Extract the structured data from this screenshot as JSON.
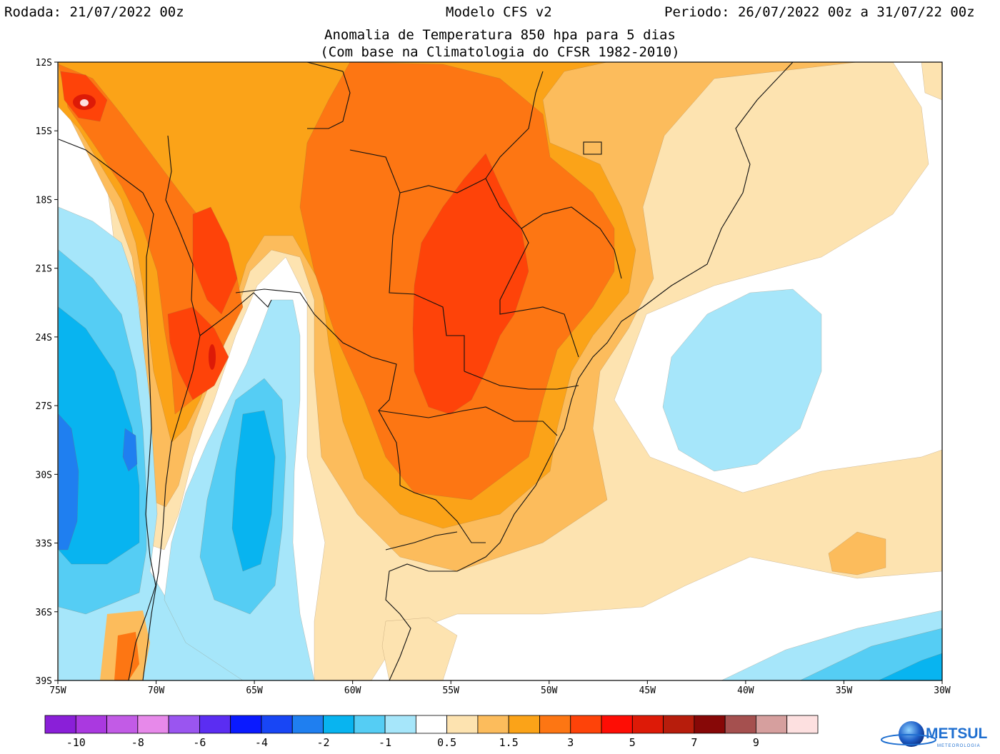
{
  "header": {
    "rodada": "Rodada: 21/07/2022 00z",
    "modelo": "Modelo CFS v2",
    "periodo": "Periodo: 26/07/2022 00z a 31/07/22 00z",
    "title_line1": "Anomalia de Temperatura 850 hpa para 5 dias",
    "title_line2": "(Com base na Climatologia do CFSR 1982-2010)"
  },
  "map": {
    "lat_labels": [
      "12S",
      "15S",
      "18S",
      "21S",
      "24S",
      "27S",
      "30S",
      "33S",
      "36S",
      "39S"
    ],
    "lon_labels": [
      "75W",
      "70W",
      "65W",
      "60W",
      "55W",
      "50W",
      "45W",
      "40W",
      "35W",
      "30W"
    ],
    "extent": {
      "lon": [
        -75,
        -30
      ],
      "lat": [
        -12,
        -39
      ]
    }
  },
  "colorbar": {
    "labels": [
      "-10",
      "-8",
      "-6",
      "-4",
      "-2",
      "-1",
      "0.5",
      "1.5",
      "3",
      "5",
      "7",
      "9"
    ],
    "colors": [
      "#8a1fd8",
      "#aa39e0",
      "#c25be6",
      "#e789ea",
      "#9a55f0",
      "#5b2df2",
      "#0a1aff",
      "#1846f5",
      "#1f7ff0",
      "#08b4f0",
      "#55cdf4",
      "#a6e6fa",
      "#ffffff",
      "#fde3b0",
      "#fcbc5c",
      "#fba318",
      "#fd7613",
      "#fe4309",
      "#fe0d05",
      "#dd1a07",
      "#b71d0c",
      "#870807",
      "#a5504f",
      "#d69f9e",
      "#fde0e0"
    ]
  },
  "palette": {
    "neg_deep": "#1f7ff0",
    "neg_mid": "#08b4f0",
    "neg_light": "#55cdf4",
    "neg_faint": "#a6e6fa",
    "pos_faint": "#fde3b0",
    "pos_light": "#fcbc5c",
    "pos_mid": "#fba318",
    "pos_strong": "#fd7613",
    "pos_deep": "#fe4309",
    "pos_peak": "#dd1a07"
  },
  "logo": {
    "text": "METSUL",
    "subtext": "METEOROLOGIA"
  }
}
